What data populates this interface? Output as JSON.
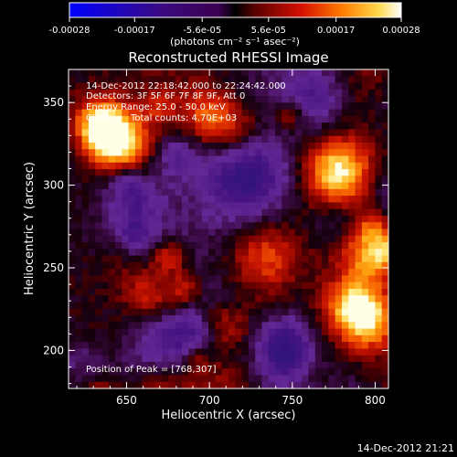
{
  "chart_data": {
    "type": "heatmap",
    "title": "Reconstructed RHESSI Image",
    "xlabel": "Heliocentric X (arcsec)",
    "ylabel": "Heliocentric Y (arcsec)",
    "xlim": [
      615,
      808
    ],
    "ylim": [
      177,
      370
    ],
    "xticks": [
      "650",
      "700",
      "750",
      "800"
    ],
    "yticks": [
      "200",
      "250",
      "300",
      "350"
    ],
    "colorbar": {
      "tick_labels": [
        "-0.00028",
        "-0.00017",
        "-5.6e-05",
        "5.6e-05",
        "0.00017",
        "0.00028"
      ],
      "units": "(photons cm⁻² s⁻¹ asec⁻²)",
      "vmin": -0.00028,
      "vmax": 0.00028
    },
    "annotations": {
      "time_range": "14-Dec-2012 22:18:42.000 to 22:24:42.000",
      "detectors": "Detectors: 3F 5F 6F 7F 8F 9F, Att 0",
      "energy": "Energy Range: 25.0 - 50.0 keV",
      "method": "Clean",
      "counts": "Total counts: 4.70E+03",
      "peak": "Position of Peak = [768,307]"
    },
    "peak": [
      768,
      307
    ],
    "footer_timestamp": "14-Dec-2012 21:21"
  }
}
